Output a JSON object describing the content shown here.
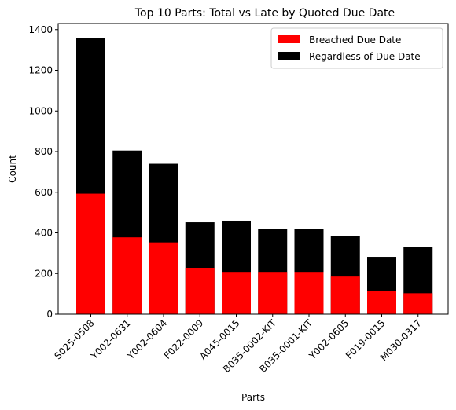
{
  "chart_data": {
    "type": "bar",
    "stacked": "overlay",
    "title": "Top 10 Parts: Total vs Late by Quoted Due Date",
    "xlabel": "Parts",
    "ylabel": "Count",
    "ylim": [
      0,
      1430
    ],
    "yticks": [
      "0",
      "200",
      "400",
      "600",
      "800",
      "1000",
      "1200",
      "1400"
    ],
    "categories": [
      "S025-0508",
      "Y002-0631",
      "Y002-0604",
      "F022-0009",
      "A045-0015",
      "B035-0002-KIT",
      "B035-0001-KIT",
      "Y002-0605",
      "F019-0015",
      "M030-0317"
    ],
    "series": [
      {
        "name": "Regardless of Due Date",
        "color": "#000000",
        "values": [
          1360,
          805,
          740,
          452,
          460,
          418,
          418,
          385,
          282,
          332
        ]
      },
      {
        "name": "Breached Due Date",
        "color": "#ff0000",
        "values": [
          593,
          378,
          353,
          228,
          208,
          208,
          208,
          185,
          116,
          103
        ]
      }
    ],
    "legend_order": [
      "Breached Due Date",
      "Regardless of Due Date"
    ],
    "legend_position": "upper right",
    "grid": false
  }
}
